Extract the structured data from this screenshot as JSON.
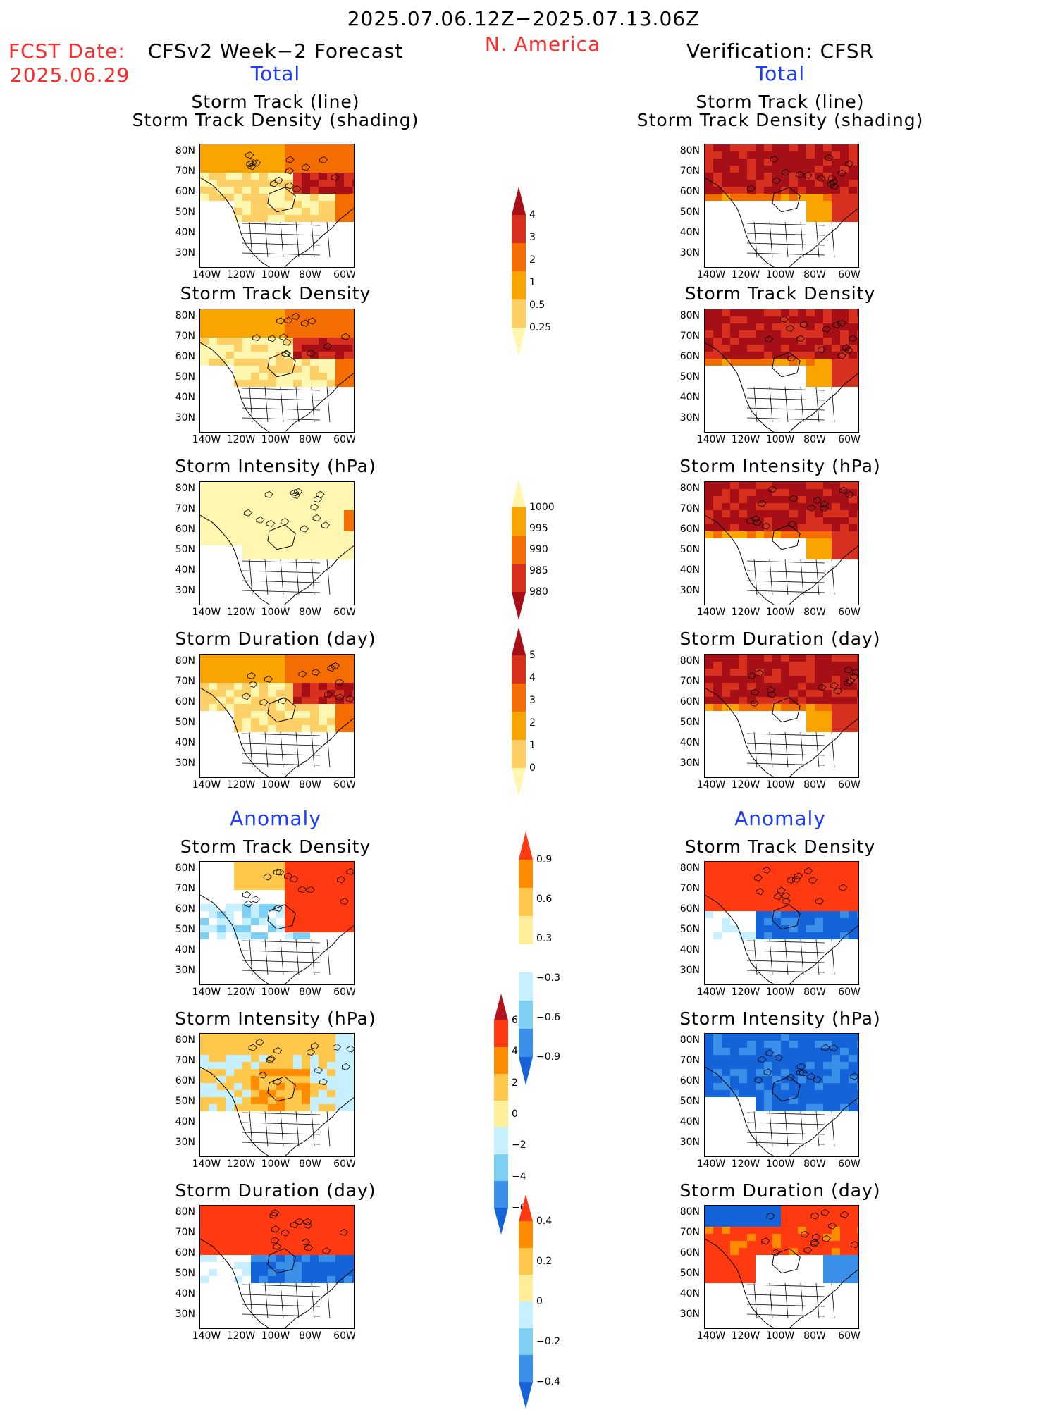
{
  "header": {
    "period": "2025.07.06.12Z−2025.07.13.06Z",
    "region": "N. America",
    "fcst_label": "FCST Date:",
    "fcst_date": "2025.06.29",
    "left_title": "CFSv2 Week−2 Forecast",
    "right_title": "Verification: CFSR",
    "left_total": "Total",
    "right_total": "Total",
    "left_anomaly": "Anomaly",
    "right_anomaly": "Anomaly"
  },
  "axes": {
    "lat_labels": [
      "80N",
      "70N",
      "60N",
      "50N",
      "40N",
      "30N"
    ],
    "lon_labels": [
      "140W",
      "120W",
      "100W",
      "80W",
      "60W"
    ]
  },
  "panels": [
    {
      "title1": "Storm Track (line)",
      "title2": "Storm Track Density (shading)",
      "left_style": "orange",
      "right_style": "darkred"
    },
    {
      "title1": "Storm Track Density",
      "title2": "",
      "left_style": "orange",
      "right_style": "darkred"
    },
    {
      "title1": "Storm Intensity (hPa)",
      "title2": "",
      "left_style": "pale",
      "right_style": "darkred"
    },
    {
      "title1": "Storm Duration (day)",
      "title2": "",
      "left_style": "orange",
      "right_style": "darkred"
    },
    {
      "title1": "Storm Track Density",
      "title2": "",
      "left_style": "anom_red",
      "right_style": "anom_mixed"
    },
    {
      "title1": "Storm Intensity (hPa)",
      "title2": "",
      "left_style": "anom_pale",
      "right_style": "anom_blue"
    },
    {
      "title1": "Storm Duration (day)",
      "title2": "",
      "left_style": "anom_mixed",
      "right_style": "anom_mixed2"
    }
  ],
  "colorbars": [
    {
      "name": "density",
      "labels": [
        "4",
        "3",
        "2",
        "1",
        "0.5",
        "0.25"
      ],
      "colors": [
        "#a50f15",
        "#d7301f",
        "#f46d00",
        "#f9a400",
        "#fdd067",
        "#fff6b0"
      ]
    },
    {
      "name": "intensity",
      "labels": [
        "1000",
        "995",
        "990",
        "985",
        "980"
      ],
      "colors": [
        "#fff6b0",
        "#f9a400",
        "#f46d00",
        "#d7301f",
        "#a50f15"
      ]
    },
    {
      "name": "duration",
      "labels": [
        "5",
        "4",
        "3",
        "2",
        "1",
        "0"
      ],
      "colors": [
        "#a50f15",
        "#d7301f",
        "#f46d00",
        "#f9a400",
        "#fdd067",
        "#fff6b0"
      ]
    },
    {
      "name": "density-anom",
      "labels": [
        "0.9",
        "0.6",
        "0.3",
        "−0.3",
        "−0.6",
        "−0.9"
      ],
      "colors": [
        "#ff3a10",
        "#ff8c00",
        "#ffc84a",
        "#ffee99",
        "#ffffff",
        "#c6f0ff",
        "#7fd0f5",
        "#3a8fe8",
        "#1463d8"
      ]
    },
    {
      "name": "intensity-anom",
      "labels": [
        "6",
        "4",
        "2",
        "0",
        "−2",
        "−4",
        "−6"
      ],
      "colors": [
        "#b4141e",
        "#ff3a10",
        "#ff8c00",
        "#ffc84a",
        "#ffee99",
        "#c6f0ff",
        "#7fd0f5",
        "#3a8fe8",
        "#1463d8"
      ]
    },
    {
      "name": "duration-anom",
      "labels": [
        "0.4",
        "0.2",
        "0",
        "−0.2",
        "−0.4"
      ],
      "colors": [
        "#ff3a10",
        "#ff8c00",
        "#ffc84a",
        "#ffee99",
        "#c6f0ff",
        "#7fd0f5",
        "#3a8fe8",
        "#1463d8"
      ]
    }
  ]
}
